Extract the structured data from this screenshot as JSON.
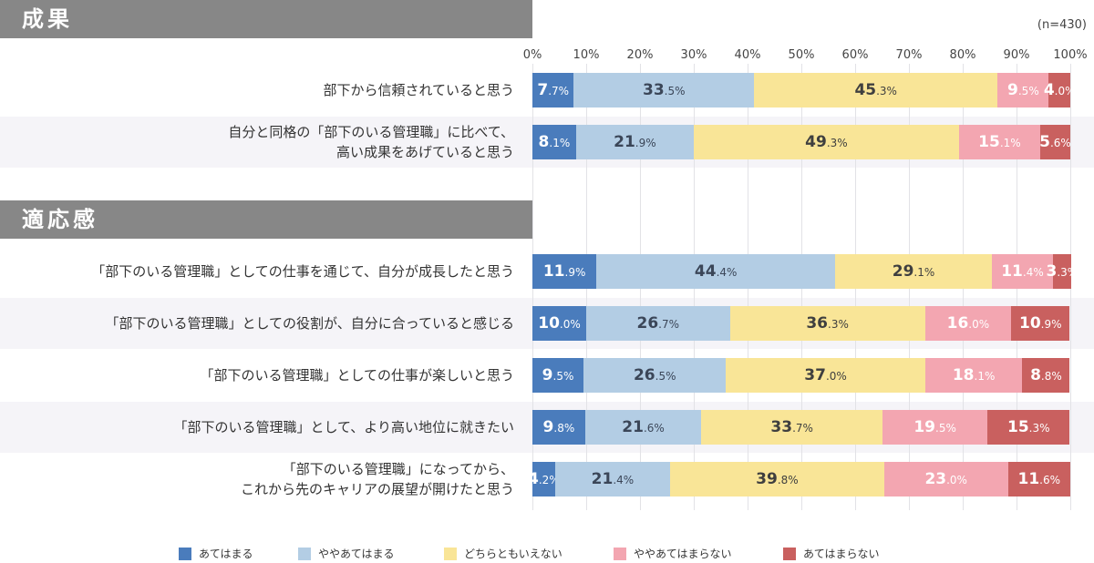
{
  "sample_note": "(n=430)",
  "sections": [
    {
      "title": "成果"
    },
    {
      "title": "適応感"
    }
  ],
  "colors": [
    "#4a7cbc",
    "#b3cde4",
    "#f9e597",
    "#f3a6b1",
    "#c9605f"
  ],
  "label_colors": [
    "#ffffff",
    "#3b4658",
    "#3f3f3f",
    "#ffffff",
    "#ffffff"
  ],
  "chart_data": {
    "type": "bar",
    "orientation": "horizontal-stacked-100",
    "xlim": [
      0,
      100
    ],
    "ticks": [
      "0%",
      "10%",
      "20%",
      "30%",
      "40%",
      "50%",
      "60%",
      "70%",
      "80%",
      "90%",
      "100%"
    ],
    "grid": true,
    "legend_placement": "bottom",
    "series_names": [
      "あてはまる",
      "ややあてはまる",
      "どちらともいえない",
      "ややあてはまらない",
      "あてはまらない"
    ],
    "categories": [
      {
        "section": 0,
        "label": "部下から信頼されていると思う",
        "values": [
          7.7,
          33.5,
          45.3,
          9.5,
          4.0
        ]
      },
      {
        "section": 0,
        "label": "自分と同格の「部下のいる管理職」に比べて、\n高い成果をあげていると思う",
        "values": [
          8.1,
          21.9,
          49.3,
          15.1,
          5.6
        ]
      },
      {
        "section": 1,
        "label": "「部下のいる管理職」としての仕事を通じて、自分が成長したと思う",
        "values": [
          11.9,
          44.4,
          29.1,
          11.4,
          3.3
        ]
      },
      {
        "section": 1,
        "label": "「部下のいる管理職」としての役割が、自分に合っていると感じる",
        "values": [
          10.0,
          26.7,
          36.3,
          16.0,
          10.9
        ]
      },
      {
        "section": 1,
        "label": "「部下のいる管理職」としての仕事が楽しいと思う",
        "values": [
          9.5,
          26.5,
          37.0,
          18.1,
          8.8
        ]
      },
      {
        "section": 1,
        "label": "「部下のいる管理職」として、より高い地位に就きたい",
        "values": [
          9.8,
          21.6,
          33.7,
          19.5,
          15.3
        ]
      },
      {
        "section": 1,
        "label": "「部下のいる管理職」になってから、\nこれから先のキャリアの展望が開けたと思う",
        "values": [
          4.2,
          21.4,
          39.8,
          23.0,
          11.6
        ]
      }
    ]
  }
}
